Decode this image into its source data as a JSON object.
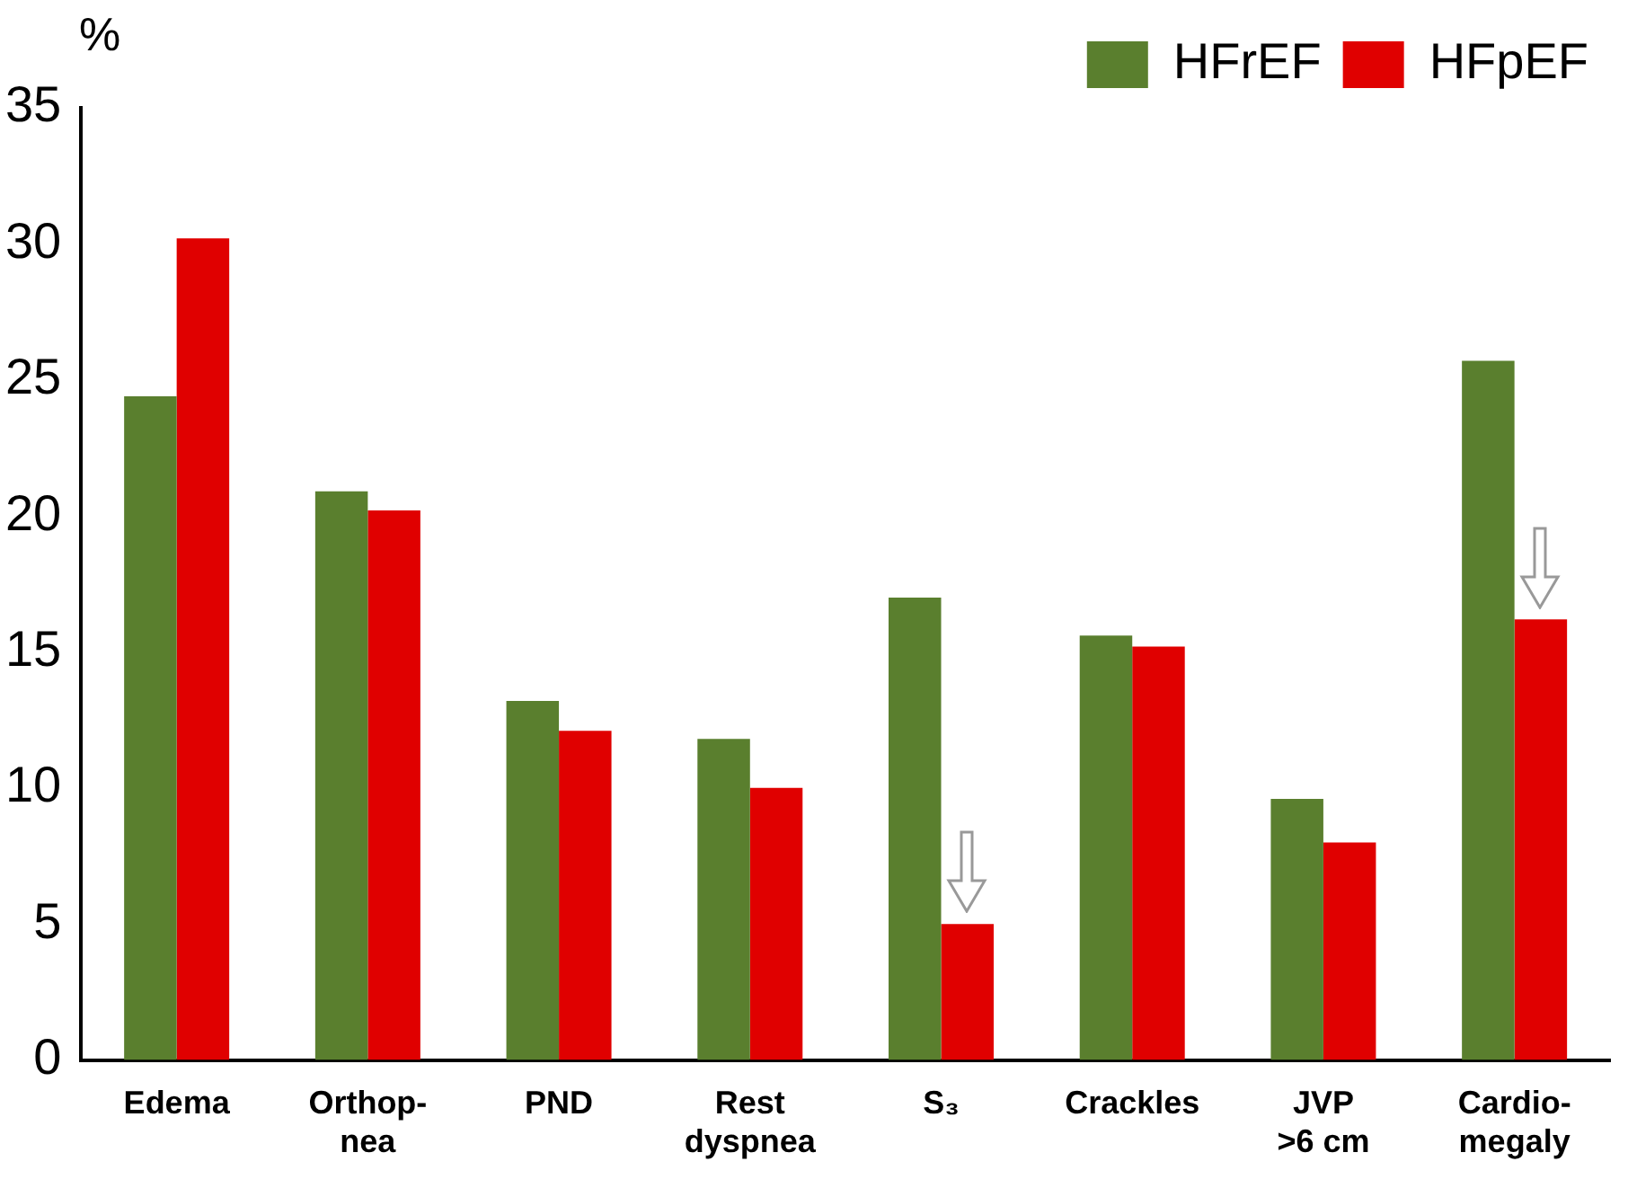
{
  "chart_data": {
    "type": "bar",
    "ylabel": "%",
    "categories": [
      "Edema",
      "Orthop-\nnea",
      "PND",
      "Rest\ndyspnea",
      "S₃",
      "Crackles",
      "JVP\n>6 cm",
      "Cardio-\nmegaly"
    ],
    "series": [
      {
        "name": "HFrEF",
        "color": "#5a7f2e",
        "values": [
          24.4,
          20.9,
          13.2,
          11.8,
          17.0,
          15.6,
          9.6,
          25.7
        ]
      },
      {
        "name": "HFpEF",
        "color": "#e00000",
        "values": [
          30.2,
          20.2,
          12.1,
          10.0,
          5.0,
          15.2,
          8.0,
          16.2
        ]
      }
    ],
    "ylim": [
      0,
      35
    ],
    "yticks": [
      0,
      5,
      10,
      15,
      20,
      25,
      30,
      35
    ],
    "grid": false,
    "legend": "top right"
  }
}
